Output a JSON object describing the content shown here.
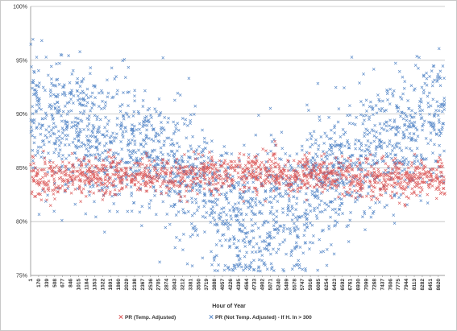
{
  "chart_data": {
    "type": "scatter",
    "title": "",
    "xlabel": "Hour of Year",
    "ylabel": "",
    "xlim": [
      1,
      8760
    ],
    "ylim": [
      75,
      100
    ],
    "y_ticks": [
      "75%",
      "80%",
      "85%",
      "90%",
      "95%",
      "100%"
    ],
    "x_ticks": [
      "1",
      "170",
      "339",
      "508",
      "677",
      "846",
      "1015",
      "1184",
      "1353",
      "1522",
      "1691",
      "1860",
      "2029",
      "2198",
      "2367",
      "2536",
      "2705",
      "2874",
      "3043",
      "3212",
      "3381",
      "3550",
      "3719",
      "3888",
      "4057",
      "4226",
      "4395",
      "4564",
      "4733",
      "4902",
      "5071",
      "5240",
      "5409",
      "5578",
      "5747",
      "5916",
      "6085",
      "6254",
      "6423",
      "6592",
      "6761",
      "6930",
      "7099",
      "7268",
      "7437",
      "7606",
      "7775",
      "7944",
      "8113",
      "8282",
      "8451",
      "8620"
    ],
    "grid": "horizontal",
    "legend_position": "bottom",
    "series": [
      {
        "name": "PR (Temp. Adjusted)",
        "color": "#d94a4a",
        "marker": "x",
        "profile_x": [
          1,
          1000,
          2000,
          3000,
          4000,
          5000,
          6000,
          7000,
          8000,
          8760
        ],
        "profile_y": [
          84.0,
          84.2,
          84.3,
          84.2,
          84.5,
          84.6,
          84.2,
          84.0,
          84.0,
          84.1
        ],
        "spread": 0.9
      },
      {
        "name": "PR (Not Temp. Adjusted) - If H. In > 300",
        "color": "#4a7fc4",
        "marker": "x",
        "profile_x": [
          1,
          500,
          1000,
          1500,
          2000,
          2500,
          3000,
          3500,
          4000,
          4500,
          5000,
          5500,
          6000,
          6500,
          7000,
          7500,
          8000,
          8500,
          8760
        ],
        "profile_y": [
          89.5,
          89.5,
          89.0,
          88.0,
          87.0,
          86.5,
          85.5,
          84.0,
          81.5,
          80.0,
          81.0,
          81.0,
          83.0,
          84.5,
          86.0,
          87.0,
          88.0,
          90.0,
          90.5
        ],
        "spread": 3.2
      }
    ]
  }
}
